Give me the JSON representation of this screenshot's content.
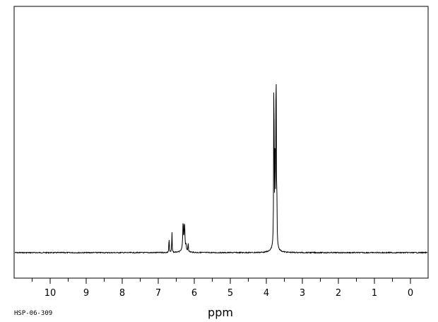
{
  "chart_data": {
    "type": "line",
    "xlabel": "ppm",
    "x_reversed": true,
    "xlim": [
      11.0,
      -0.5
    ],
    "ylim": [
      -0.11,
      1.0
    ],
    "grid": false,
    "major_ticks": [
      10,
      9,
      8,
      7,
      6,
      5,
      4,
      3,
      2,
      1,
      0
    ],
    "tick_labels": [
      "10",
      "9",
      "8",
      "7",
      "6",
      "5",
      "4",
      "3",
      "2",
      "1",
      "0"
    ],
    "spectrum_code": "HSP-06-309",
    "peaks": [
      {
        "ppm": 6.7,
        "height": 0.075,
        "width": 0.006
      },
      {
        "ppm": 6.62,
        "height": 0.1,
        "width": 0.006
      },
      {
        "ppm": 6.31,
        "height": 0.115,
        "width": 0.012
      },
      {
        "ppm": 6.27,
        "height": 0.115,
        "width": 0.012
      },
      {
        "ppm": 6.23,
        "height": 0.03,
        "width": 0.006
      },
      {
        "ppm": 6.17,
        "height": 0.045,
        "width": 0.006
      },
      {
        "ppm": 3.79,
        "height": 0.91,
        "width": 0.006
      },
      {
        "ppm": 3.76,
        "height": 0.52,
        "width": 0.006
      },
      {
        "ppm": 3.73,
        "height": 0.98,
        "width": 0.006
      },
      {
        "ppm": 3.71,
        "height": 0.23,
        "width": 0.006
      },
      {
        "ppm": 3.76,
        "height": 0.04,
        "width": 0.06
      },
      {
        "ppm": 6.28,
        "height": 0.01,
        "width": 0.08
      }
    ],
    "color": "#000000"
  }
}
